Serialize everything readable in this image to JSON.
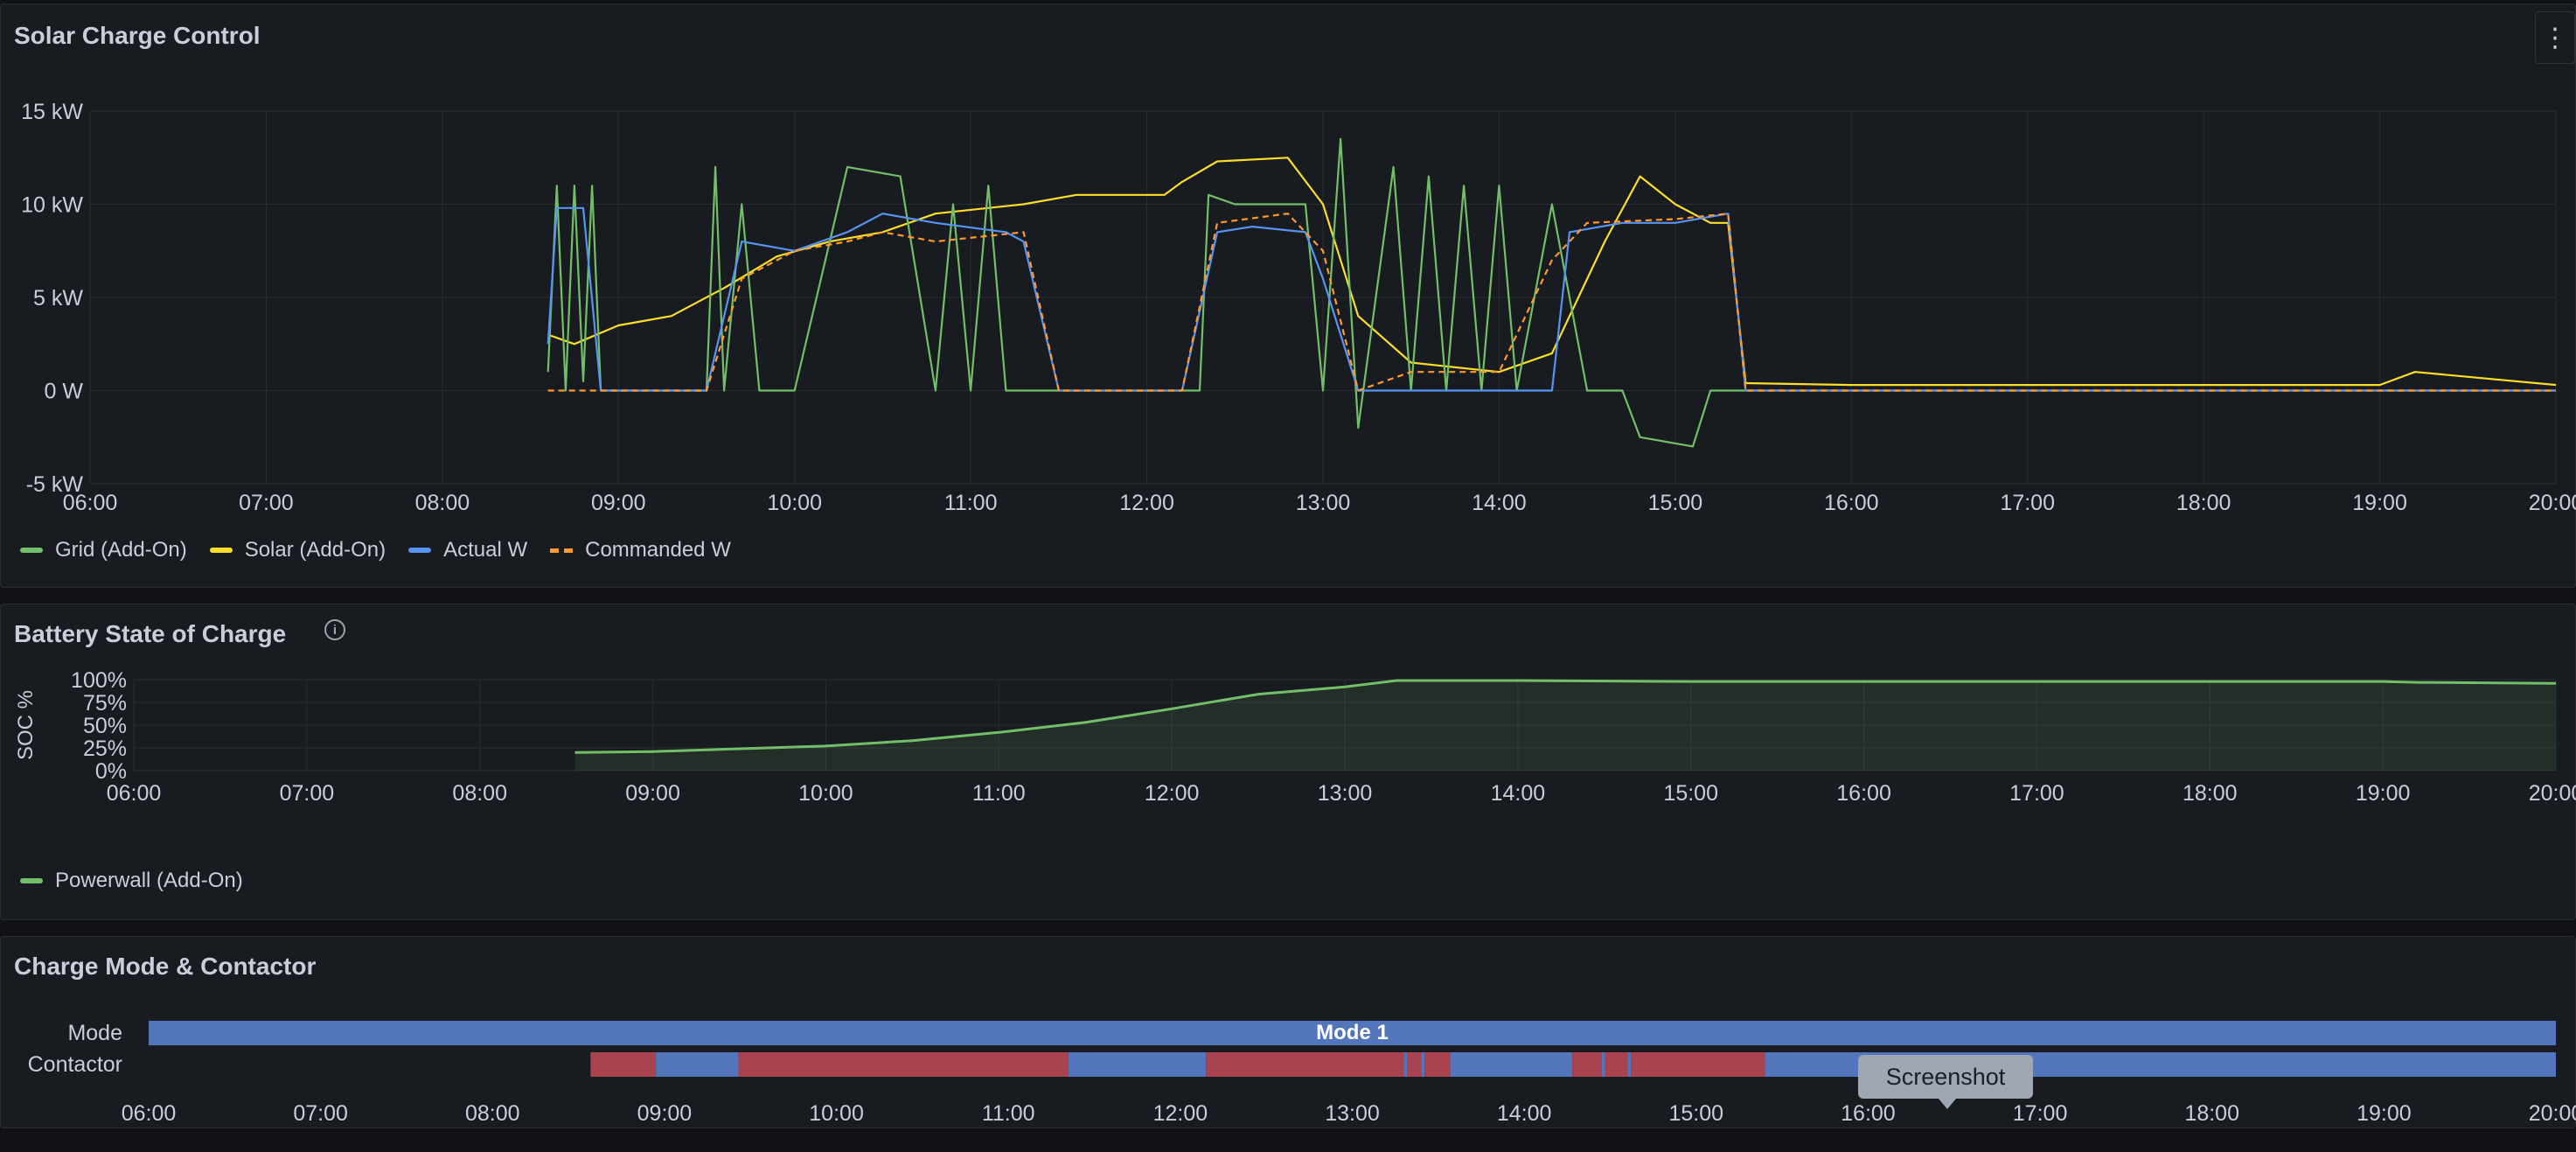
{
  "panels": {
    "solar": {
      "title": "Solar Charge Control",
      "legend": [
        {
          "label": "Grid (Add-On)",
          "color": "#73bf69",
          "dashed": false
        },
        {
          "label": "Solar (Add-On)",
          "color": "#fade2a",
          "dashed": false
        },
        {
          "label": "Actual W",
          "color": "#5794f2",
          "dashed": false
        },
        {
          "label": "Commanded W",
          "color": "#ff9830",
          "dashed": true
        }
      ]
    },
    "battery": {
      "title": "Battery State of Charge",
      "legend": [
        {
          "label": "Powerwall (Add-On)",
          "color": "#73bf69",
          "dashed": false
        }
      ]
    },
    "mode": {
      "title": "Charge Mode & Contactor",
      "row_labels": [
        "Mode",
        "Contactor"
      ]
    }
  },
  "tooltip": "Screenshot",
  "chart_data": [
    {
      "type": "line",
      "title": "Solar Charge Control",
      "xlabel": "",
      "ylabel": "",
      "x_ticks": [
        "06:00",
        "07:00",
        "08:00",
        "09:00",
        "10:00",
        "11:00",
        "12:00",
        "13:00",
        "14:00",
        "15:00",
        "16:00",
        "17:00",
        "18:00",
        "19:00",
        "20:00"
      ],
      "y_ticks": [
        "15 kW",
        "10 kW",
        "5 kW",
        "0 W",
        "-5 kW"
      ],
      "ylim": [
        -5,
        15
      ],
      "x_range_hours": [
        6,
        20
      ],
      "grid": true,
      "legend_position": "bottom-left",
      "series": [
        {
          "name": "Solar (Add-On)",
          "color": "#fade2a",
          "dashed": false,
          "points": [
            [
              8.6,
              3
            ],
            [
              8.75,
              2.5
            ],
            [
              9.0,
              3.5
            ],
            [
              9.3,
              4
            ],
            [
              9.6,
              5.5
            ],
            [
              9.9,
              7.2
            ],
            [
              10.2,
              8
            ],
            [
              10.5,
              8.5
            ],
            [
              10.8,
              9.5
            ],
            [
              11.3,
              10
            ],
            [
              11.6,
              10.5
            ],
            [
              12.1,
              10.5
            ],
            [
              12.2,
              11.2
            ],
            [
              12.4,
              12.3
            ],
            [
              12.8,
              12.5
            ],
            [
              13.0,
              10
            ],
            [
              13.2,
              4
            ],
            [
              13.5,
              1.5
            ],
            [
              14.0,
              1
            ],
            [
              14.3,
              2
            ],
            [
              14.6,
              8
            ],
            [
              14.8,
              11.5
            ],
            [
              15.0,
              10
            ],
            [
              15.2,
              9
            ],
            [
              15.3,
              9
            ],
            [
              15.4,
              0.4
            ],
            [
              16.0,
              0.3
            ],
            [
              17.0,
              0.3
            ],
            [
              18.0,
              0.3
            ],
            [
              19.0,
              0.3
            ],
            [
              19.2,
              1
            ],
            [
              20.0,
              0.3
            ]
          ]
        },
        {
          "name": "Grid (Add-On)",
          "color": "#73bf69",
          "dashed": false,
          "points": [
            [
              8.6,
              1
            ],
            [
              8.65,
              11
            ],
            [
              8.7,
              0
            ],
            [
              8.75,
              11
            ],
            [
              8.8,
              0.5
            ],
            [
              8.85,
              11
            ],
            [
              8.9,
              0
            ],
            [
              9.5,
              0
            ],
            [
              9.55,
              12
            ],
            [
              9.6,
              0
            ],
            [
              9.7,
              10
            ],
            [
              9.8,
              0
            ],
            [
              10.0,
              0
            ],
            [
              10.3,
              12
            ],
            [
              10.6,
              11.5
            ],
            [
              10.8,
              0
            ],
            [
              10.9,
              10
            ],
            [
              11.0,
              0
            ],
            [
              11.1,
              11
            ],
            [
              11.2,
              0
            ],
            [
              11.3,
              0
            ],
            [
              11.6,
              0
            ],
            [
              12.0,
              0
            ],
            [
              12.3,
              0
            ],
            [
              12.35,
              10.5
            ],
            [
              12.5,
              10
            ],
            [
              12.9,
              10
            ],
            [
              13.0,
              0
            ],
            [
              13.1,
              13.5
            ],
            [
              13.2,
              -2
            ],
            [
              13.4,
              12
            ],
            [
              13.5,
              0
            ],
            [
              13.6,
              11.5
            ],
            [
              13.7,
              0
            ],
            [
              13.8,
              11
            ],
            [
              13.9,
              0
            ],
            [
              14.0,
              11
            ],
            [
              14.1,
              0
            ],
            [
              14.3,
              10
            ],
            [
              14.5,
              0
            ],
            [
              14.7,
              0
            ],
            [
              14.8,
              -2.5
            ],
            [
              15.1,
              -3
            ],
            [
              15.2,
              0
            ],
            [
              15.4,
              0
            ],
            [
              15.45,
              0
            ],
            [
              16.0,
              0
            ],
            [
              17.0,
              0
            ],
            [
              18.0,
              0
            ],
            [
              19.0,
              0
            ],
            [
              20.0,
              0
            ]
          ]
        },
        {
          "name": "Actual W",
          "color": "#5794f2",
          "dashed": false,
          "points": [
            [
              8.6,
              2.5
            ],
            [
              8.65,
              9.8
            ],
            [
              8.8,
              9.8
            ],
            [
              8.9,
              0
            ],
            [
              9.5,
              0
            ],
            [
              9.7,
              8
            ],
            [
              10.0,
              7.5
            ],
            [
              10.3,
              8.5
            ],
            [
              10.5,
              9.5
            ],
            [
              10.8,
              9
            ],
            [
              11.2,
              8.5
            ],
            [
              11.3,
              8
            ],
            [
              11.5,
              0
            ],
            [
              12.2,
              0
            ],
            [
              12.4,
              8.5
            ],
            [
              12.6,
              8.8
            ],
            [
              12.9,
              8.5
            ],
            [
              13.0,
              6
            ],
            [
              13.2,
              0
            ],
            [
              13.5,
              0
            ],
            [
              14.0,
              0
            ],
            [
              14.3,
              0
            ],
            [
              14.4,
              8.5
            ],
            [
              14.7,
              9
            ],
            [
              15.0,
              9
            ],
            [
              15.3,
              9.5
            ],
            [
              15.4,
              0
            ],
            [
              20.0,
              0
            ]
          ]
        },
        {
          "name": "Commanded W",
          "color": "#ff9830",
          "dashed": true,
          "points": [
            [
              8.6,
              0
            ],
            [
              9.5,
              0
            ],
            [
              9.7,
              6
            ],
            [
              10.0,
              7.5
            ],
            [
              10.3,
              8
            ],
            [
              10.5,
              8.5
            ],
            [
              10.8,
              8
            ],
            [
              11.3,
              8.5
            ],
            [
              11.5,
              0
            ],
            [
              12.2,
              0
            ],
            [
              12.4,
              9
            ],
            [
              12.8,
              9.5
            ],
            [
              13.0,
              7.5
            ],
            [
              13.2,
              0
            ],
            [
              13.5,
              1
            ],
            [
              14.0,
              1
            ],
            [
              14.3,
              7
            ],
            [
              14.5,
              9
            ],
            [
              15.0,
              9.2
            ],
            [
              15.3,
              9.5
            ],
            [
              15.4,
              0
            ],
            [
              20.0,
              0
            ]
          ]
        }
      ]
    },
    {
      "type": "area",
      "title": "Battery State of Charge",
      "xlabel": "",
      "ylabel": "SOC %",
      "x_ticks": [
        "06:00",
        "07:00",
        "08:00",
        "09:00",
        "10:00",
        "11:00",
        "12:00",
        "13:00",
        "14:00",
        "15:00",
        "16:00",
        "17:00",
        "18:00",
        "19:00",
        "20:00"
      ],
      "y_ticks": [
        "100%",
        "75%",
        "50%",
        "25%",
        "0%"
      ],
      "ylim": [
        0,
        100
      ],
      "x_range_hours": [
        6,
        20
      ],
      "grid": true,
      "legend_position": "bottom-left",
      "series": [
        {
          "name": "Powerwall (Add-On)",
          "color": "#73bf69",
          "points": [
            [
              8.55,
              20
            ],
            [
              9.0,
              21
            ],
            [
              9.5,
              24
            ],
            [
              10.0,
              27
            ],
            [
              10.5,
              33
            ],
            [
              11.0,
              42
            ],
            [
              11.5,
              53
            ],
            [
              12.0,
              68
            ],
            [
              12.5,
              84
            ],
            [
              13.0,
              92
            ],
            [
              13.3,
              99
            ],
            [
              14.0,
              99
            ],
            [
              15.0,
              98
            ],
            [
              16.0,
              98
            ],
            [
              17.0,
              98
            ],
            [
              18.0,
              98
            ],
            [
              19.0,
              98
            ],
            [
              19.2,
              97
            ],
            [
              20.0,
              96
            ]
          ]
        }
      ]
    },
    {
      "type": "state-timeline",
      "title": "Charge Mode & Contactor",
      "x_ticks": [
        "06:00",
        "07:00",
        "08:00",
        "09:00",
        "10:00",
        "11:00",
        "12:00",
        "13:00",
        "14:00",
        "15:00",
        "16:00",
        "17:00",
        "18:00",
        "19:00",
        "20:00"
      ],
      "x_range_hours": [
        6,
        20
      ],
      "rows": [
        {
          "name": "Mode",
          "segments": [
            {
              "start": 6.0,
              "end": 20.0,
              "state": "Mode 1",
              "color": "#5375bb"
            }
          ]
        },
        {
          "name": "Contactor",
          "segments": [
            {
              "start": 8.57,
              "end": 8.95,
              "state": "",
              "color": "#a8434f"
            },
            {
              "start": 8.95,
              "end": 9.43,
              "state": "",
              "color": "#5375bb"
            },
            {
              "start": 9.43,
              "end": 11.35,
              "state": "",
              "color": "#a8434f"
            },
            {
              "start": 11.35,
              "end": 12.15,
              "state": "",
              "color": "#5375bb"
            },
            {
              "start": 12.15,
              "end": 13.3,
              "state": "",
              "color": "#a8434f"
            },
            {
              "start": 13.3,
              "end": 13.32,
              "state": "",
              "color": "#5375bb"
            },
            {
              "start": 13.32,
              "end": 13.4,
              "state": "",
              "color": "#a8434f"
            },
            {
              "start": 13.4,
              "end": 13.42,
              "state": "",
              "color": "#5375bb"
            },
            {
              "start": 13.42,
              "end": 13.57,
              "state": "",
              "color": "#a8434f"
            },
            {
              "start": 13.57,
              "end": 14.28,
              "state": "",
              "color": "#5375bb"
            },
            {
              "start": 14.28,
              "end": 14.45,
              "state": "",
              "color": "#a8434f"
            },
            {
              "start": 14.45,
              "end": 14.47,
              "state": "",
              "color": "#5375bb"
            },
            {
              "start": 14.47,
              "end": 14.6,
              "state": "",
              "color": "#a8434f"
            },
            {
              "start": 14.6,
              "end": 14.62,
              "state": "",
              "color": "#5375bb"
            },
            {
              "start": 14.62,
              "end": 15.4,
              "state": "",
              "color": "#a8434f"
            },
            {
              "start": 15.4,
              "end": 20.0,
              "state": "",
              "color": "#5375bb"
            }
          ]
        }
      ]
    }
  ]
}
